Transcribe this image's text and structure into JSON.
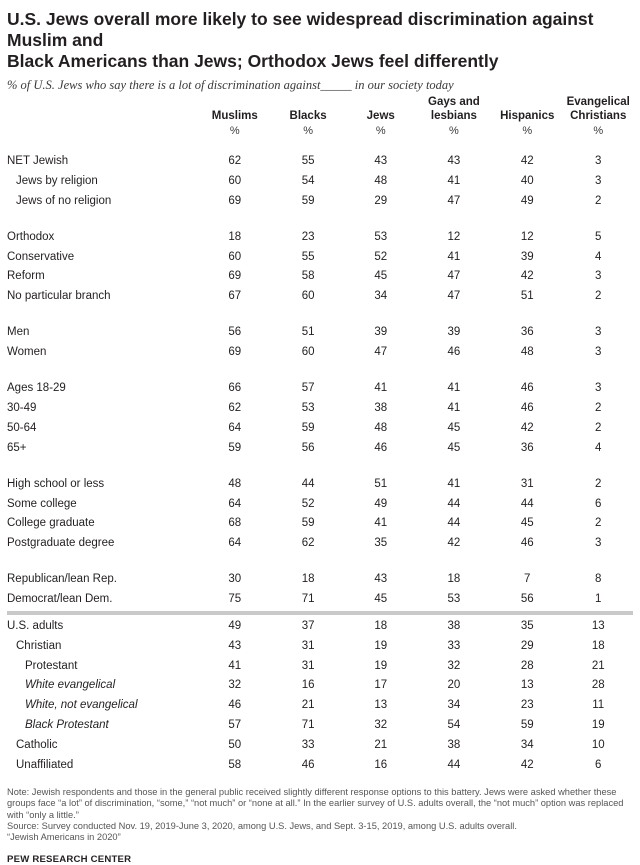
{
  "header": {
    "title_line1": "U.S. Jews overall more likely to see widespread discrimination against Muslim and",
    "title_line2": "Black Americans than Jews; Orthodox Jews feel differently",
    "subtitle": "% of U.S. Jews who say there is a lot of discrimination against_____ in our society today"
  },
  "chart_data": {
    "type": "table",
    "title": "U.S. Jews overall more likely to see widespread discrimination against Muslim and Black Americans than Jews; Orthodox Jews feel differently",
    "subtitle": "% of U.S. Jews who say there is a lot of discrimination against_____ in our society today",
    "columns": [
      {
        "label1": "",
        "label2": "Muslims",
        "unit": "%"
      },
      {
        "label1": "",
        "label2": "Blacks",
        "unit": "%"
      },
      {
        "label1": "",
        "label2": "Jews",
        "unit": "%"
      },
      {
        "label1": "Gays and",
        "label2": "lesbians",
        "unit": "%"
      },
      {
        "label1": "",
        "label2": "Hispanics",
        "unit": "%"
      },
      {
        "label1": "Evangelical",
        "label2": "Christians",
        "unit": "%"
      }
    ],
    "rows": [
      {
        "label": "NET Jewish",
        "indent": 0,
        "italic": false,
        "gap": true,
        "values": [
          "62",
          "55",
          "43",
          "43",
          "42",
          "3"
        ]
      },
      {
        "label": "Jews by religion",
        "indent": 1,
        "italic": false,
        "gap": false,
        "values": [
          "60",
          "54",
          "48",
          "41",
          "40",
          "3"
        ]
      },
      {
        "label": "Jews of no religion",
        "indent": 1,
        "italic": false,
        "gap": false,
        "values": [
          "69",
          "59",
          "29",
          "47",
          "49",
          "2"
        ]
      },
      {
        "label": "Orthodox",
        "indent": 0,
        "italic": false,
        "gap": true,
        "values": [
          "18",
          "23",
          "53",
          "12",
          "12",
          "5"
        ]
      },
      {
        "label": "Conservative",
        "indent": 0,
        "italic": false,
        "gap": false,
        "values": [
          "60",
          "55",
          "52",
          "41",
          "39",
          "4"
        ]
      },
      {
        "label": "Reform",
        "indent": 0,
        "italic": false,
        "gap": false,
        "values": [
          "69",
          "58",
          "45",
          "47",
          "42",
          "3"
        ]
      },
      {
        "label": "No particular branch",
        "indent": 0,
        "italic": false,
        "gap": false,
        "values": [
          "67",
          "60",
          "34",
          "47",
          "51",
          "2"
        ]
      },
      {
        "label": "Men",
        "indent": 0,
        "italic": false,
        "gap": true,
        "values": [
          "56",
          "51",
          "39",
          "39",
          "36",
          "3"
        ]
      },
      {
        "label": "Women",
        "indent": 0,
        "italic": false,
        "gap": false,
        "values": [
          "69",
          "60",
          "47",
          "46",
          "48",
          "3"
        ]
      },
      {
        "label": "Ages 18-29",
        "indent": 0,
        "italic": false,
        "gap": true,
        "values": [
          "66",
          "57",
          "41",
          "41",
          "46",
          "3"
        ]
      },
      {
        "label": "30-49",
        "indent": 0,
        "italic": false,
        "gap": false,
        "values": [
          "62",
          "53",
          "38",
          "41",
          "46",
          "2"
        ]
      },
      {
        "label": "50-64",
        "indent": 0,
        "italic": false,
        "gap": false,
        "values": [
          "64",
          "59",
          "48",
          "45",
          "42",
          "2"
        ]
      },
      {
        "label": "65+",
        "indent": 0,
        "italic": false,
        "gap": false,
        "values": [
          "59",
          "56",
          "46",
          "45",
          "36",
          "4"
        ]
      },
      {
        "label": "High school or less",
        "indent": 0,
        "italic": false,
        "gap": true,
        "values": [
          "48",
          "44",
          "51",
          "41",
          "31",
          "2"
        ]
      },
      {
        "label": "Some college",
        "indent": 0,
        "italic": false,
        "gap": false,
        "values": [
          "64",
          "52",
          "49",
          "44",
          "44",
          "6"
        ]
      },
      {
        "label": "College graduate",
        "indent": 0,
        "italic": false,
        "gap": false,
        "values": [
          "68",
          "59",
          "41",
          "44",
          "45",
          "2"
        ]
      },
      {
        "label": "Postgraduate degree",
        "indent": 0,
        "italic": false,
        "gap": false,
        "values": [
          "64",
          "62",
          "35",
          "42",
          "46",
          "3"
        ]
      },
      {
        "label": "Republican/lean Rep.",
        "indent": 0,
        "italic": false,
        "gap": true,
        "values": [
          "30",
          "18",
          "43",
          "18",
          "7",
          "8"
        ]
      },
      {
        "label": "Democrat/lean Dem.",
        "indent": 0,
        "italic": false,
        "gap": false,
        "values": [
          "75",
          "71",
          "45",
          "53",
          "56",
          "1"
        ]
      },
      {
        "label": "U.S. adults",
        "indent": 0,
        "italic": false,
        "gap": false,
        "rule_before": true,
        "values": [
          "49",
          "37",
          "18",
          "38",
          "35",
          "13"
        ]
      },
      {
        "label": "Christian",
        "indent": 1,
        "italic": false,
        "gap": false,
        "values": [
          "43",
          "31",
          "19",
          "33",
          "29",
          "18"
        ]
      },
      {
        "label": "Protestant",
        "indent": 2,
        "italic": false,
        "gap": false,
        "values": [
          "41",
          "31",
          "19",
          "32",
          "28",
          "21"
        ]
      },
      {
        "label": "White evangelical",
        "indent": 3,
        "italic": true,
        "gap": false,
        "values": [
          "32",
          "16",
          "17",
          "20",
          "13",
          "28"
        ]
      },
      {
        "label": "White, not evangelical",
        "indent": 3,
        "italic": true,
        "gap": false,
        "values": [
          "46",
          "21",
          "13",
          "34",
          "23",
          "11"
        ]
      },
      {
        "label": "Black Protestant",
        "indent": 3,
        "italic": true,
        "gap": false,
        "values": [
          "57",
          "71",
          "32",
          "54",
          "59",
          "19"
        ]
      },
      {
        "label": "Catholic",
        "indent": 1,
        "italic": false,
        "gap": false,
        "values": [
          "50",
          "33",
          "21",
          "38",
          "34",
          "10"
        ]
      },
      {
        "label": "Unaffiliated",
        "indent": 1,
        "italic": false,
        "gap": false,
        "values": [
          "58",
          "46",
          "16",
          "44",
          "42",
          "6"
        ]
      }
    ]
  },
  "footer": {
    "note": "Note: Jewish respondents and those in the general public received slightly different response options to this battery. Jews were asked whether these groups face “a lot” of discrimination, “some,” “not much” or “none at all.” In the earlier survey of U.S. adults overall, the “not much” option was replaced with “only a little.”",
    "source": "Source: Survey conducted Nov. 19, 2019-June 3, 2020, among U.S. Jews, and Sept. 3-15, 2019, among U.S. adults overall.",
    "report": "“Jewish Americans in 2020”",
    "org": "PEW RESEARCH CENTER"
  },
  "colors": {
    "text": "#231f20",
    "rule": "#c9c9c9",
    "note": "#555555"
  }
}
